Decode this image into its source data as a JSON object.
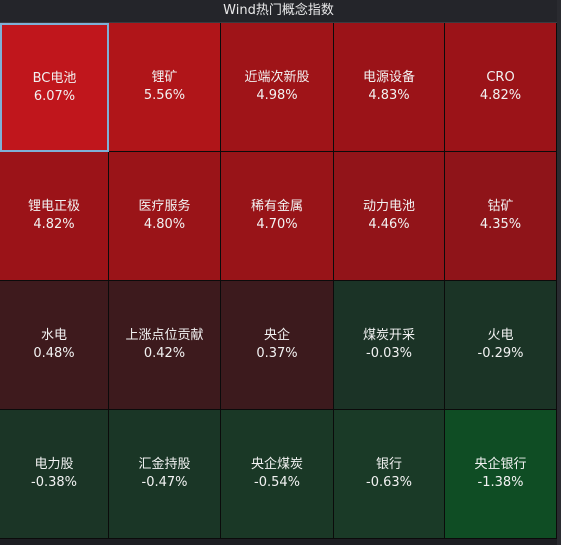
{
  "window": {
    "title": "Wind热门概念指数"
  },
  "tiles": [
    {
      "name": "BC电池",
      "change": "6.07%",
      "color": "#c0161c",
      "selected": true
    },
    {
      "name": "锂矿",
      "change": "5.56%",
      "color": "#b01519"
    },
    {
      "name": "近端次新股",
      "change": "4.98%",
      "color": "#9f1418"
    },
    {
      "name": "电源设备",
      "change": "4.83%",
      "color": "#9b1318"
    },
    {
      "name": "CRO",
      "change": "4.82%",
      "color": "#9b1318"
    },
    {
      "name": "锂电正极",
      "change": "4.82%",
      "color": "#9b1318"
    },
    {
      "name": "医疗服务",
      "change": "4.80%",
      "color": "#9a1418"
    },
    {
      "name": "稀有金属",
      "change": "4.70%",
      "color": "#981418"
    },
    {
      "name": "动力电池",
      "change": "4.46%",
      "color": "#921419"
    },
    {
      "name": "钴矿",
      "change": "4.35%",
      "color": "#8f1419"
    },
    {
      "name": "水电",
      "change": "0.48%",
      "color": "#3e1a1d"
    },
    {
      "name": "上涨点位贡献",
      "change": "0.42%",
      "color": "#3d1a1d"
    },
    {
      "name": "央企",
      "change": "0.37%",
      "color": "#3c1a1d"
    },
    {
      "name": "煤炭开采",
      "change": "-0.03%",
      "color": "#1b3326"
    },
    {
      "name": "火电",
      "change": "-0.29%",
      "color": "#1b3426"
    },
    {
      "name": "电力股",
      "change": "-0.38%",
      "color": "#1b3526"
    },
    {
      "name": "汇金持股",
      "change": "-0.47%",
      "color": "#1a3626"
    },
    {
      "name": "央企煤炭",
      "change": "-0.54%",
      "color": "#1a3826"
    },
    {
      "name": "银行",
      "change": "-0.63%",
      "color": "#1a3a27"
    },
    {
      "name": "央企银行",
      "change": "-1.38%",
      "color": "#0f4d24"
    }
  ]
}
